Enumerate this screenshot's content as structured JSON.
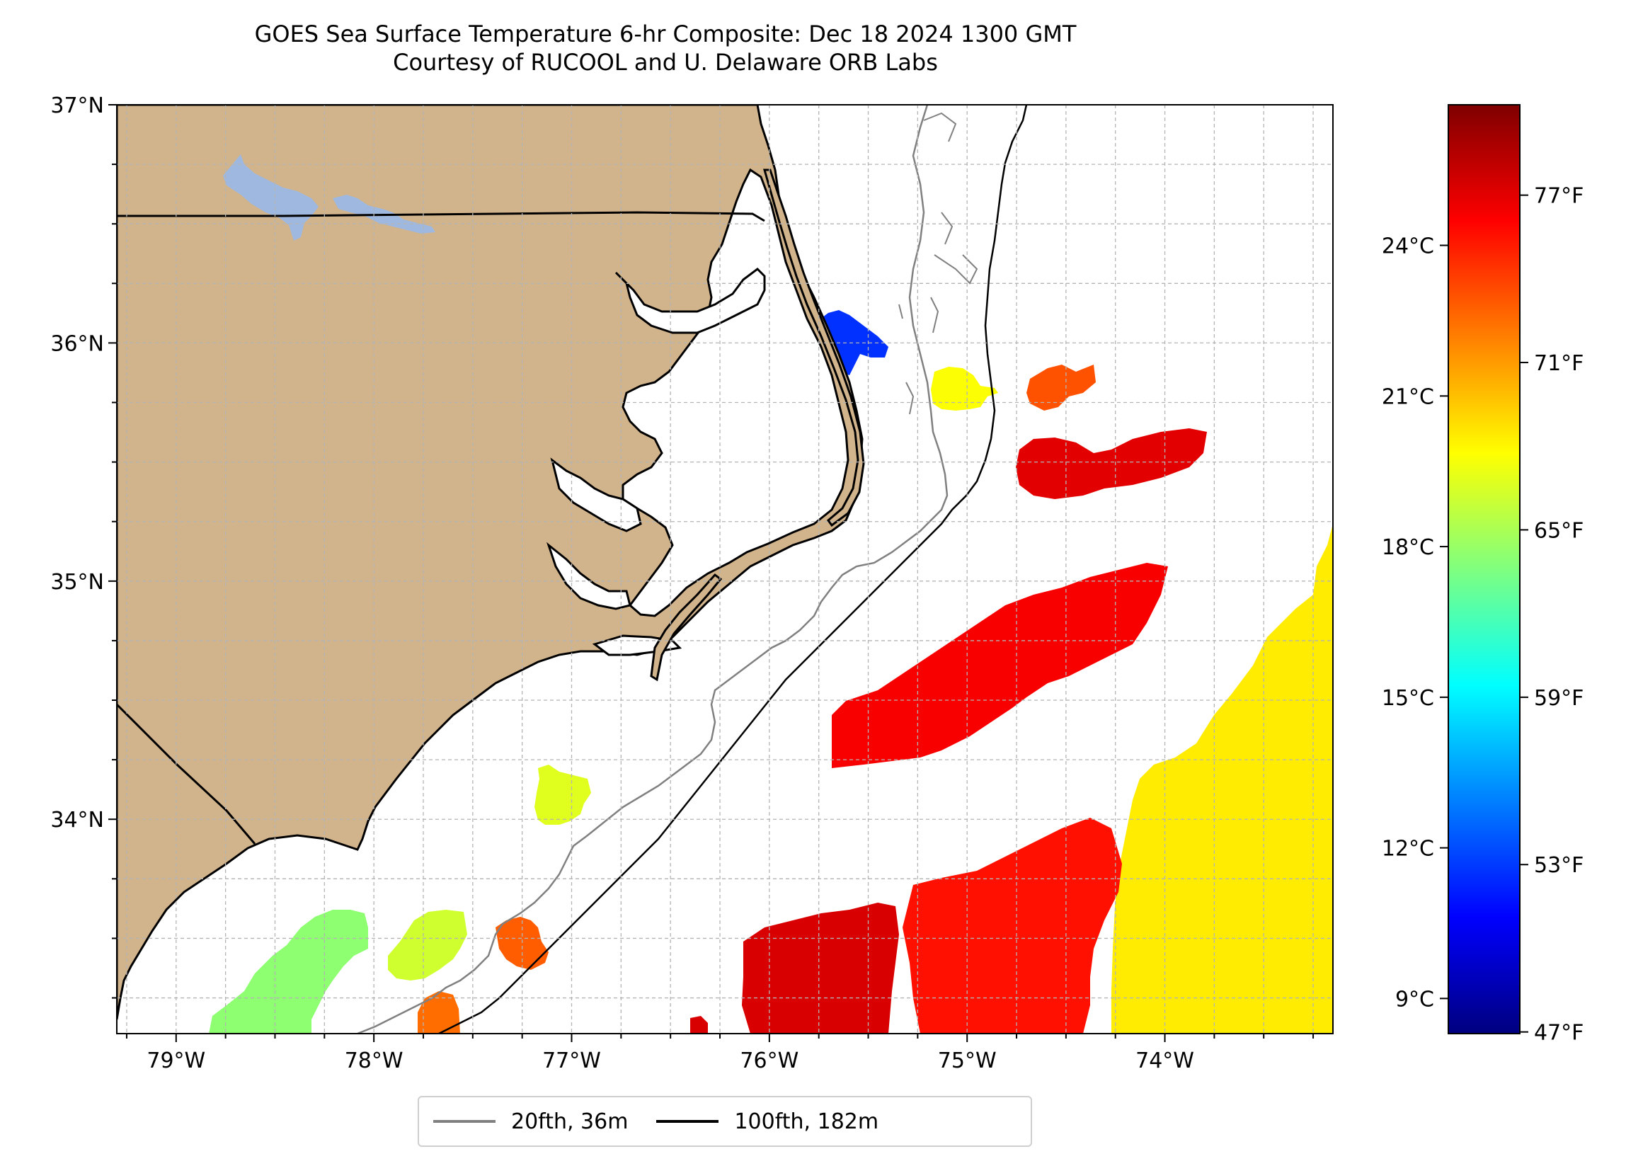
{
  "title": {
    "line1": "GOES Sea Surface Temperature 6-hr Composite: Dec 18 2024 1300 GMT",
    "line2": "Courtesy of RUCOOL and U. Delaware ORB Labs"
  },
  "map": {
    "lat_range": [
      33.1,
      37.0
    ],
    "lon_range": [
      -79.3,
      -73.15
    ],
    "lat_ticks": [
      {
        "value": 37,
        "label": "37°N"
      },
      {
        "value": 36,
        "label": "36°N"
      },
      {
        "value": 35,
        "label": "35°N"
      },
      {
        "value": 34,
        "label": "34°N"
      }
    ],
    "lon_ticks": [
      {
        "value": -79,
        "label": "79°W"
      },
      {
        "value": -78,
        "label": "78°W"
      },
      {
        "value": -77,
        "label": "77°W"
      },
      {
        "value": -76,
        "label": "76°W"
      },
      {
        "value": -75,
        "label": "75°W"
      },
      {
        "value": -74,
        "label": "74°W"
      }
    ],
    "land_color": "#d2b48c",
    "lake_color": "#9fb8df",
    "grid": true
  },
  "colorbar": {
    "celsius_range": [
      8.3,
      26.8
    ],
    "celsius_ticks": [
      {
        "value": 9,
        "label": "9°C"
      },
      {
        "value": 12,
        "label": "12°C"
      },
      {
        "value": 15,
        "label": "15°C"
      },
      {
        "value": 18,
        "label": "18°C"
      },
      {
        "value": 21,
        "label": "21°C"
      },
      {
        "value": 24,
        "label": "24°C"
      }
    ],
    "fahrenheit_ticks": [
      {
        "value": 47,
        "label": "47°F"
      },
      {
        "value": 53,
        "label": "53°F"
      },
      {
        "value": 59,
        "label": "59°F"
      },
      {
        "value": 65,
        "label": "65°F"
      },
      {
        "value": 71,
        "label": "71°F"
      },
      {
        "value": 77,
        "label": "77°F"
      }
    ],
    "colors": [
      "#00007f",
      "#0000ff",
      "#007fff",
      "#00ffff",
      "#7fff7f",
      "#ffff00",
      "#ff7f00",
      "#ff0000",
      "#7f0000"
    ]
  },
  "legend": [
    {
      "label": "20fth, 36m",
      "color": "#808080"
    },
    {
      "label": "100fth, 182m",
      "color": "#000000"
    }
  ],
  "sst_patches": [
    {
      "id": "gulf-stream-east",
      "temp_c": 20.2
    },
    {
      "id": "offshore-red-1",
      "temp_c": 24.6
    },
    {
      "id": "offshore-red-2",
      "temp_c": 25.2
    },
    {
      "id": "offshore-red-3",
      "temp_c": 24.2
    },
    {
      "id": "offshore-red-4",
      "temp_c": 25.0
    },
    {
      "id": "offshore-red-5",
      "temp_c": 23.0
    },
    {
      "id": "hatteras-cold",
      "temp_c": 11.5
    },
    {
      "id": "hatteras-yellow",
      "temp_c": 19.8
    },
    {
      "id": "onslow-yellow",
      "temp_c": 19.3
    },
    {
      "id": "southwest-green",
      "temp_c": 17.8
    },
    {
      "id": "southwest-yellow",
      "temp_c": 19.0
    },
    {
      "id": "nearshore-orange",
      "temp_c": 22.5
    },
    {
      "id": "shelf-orange",
      "temp_c": 22.8
    }
  ]
}
